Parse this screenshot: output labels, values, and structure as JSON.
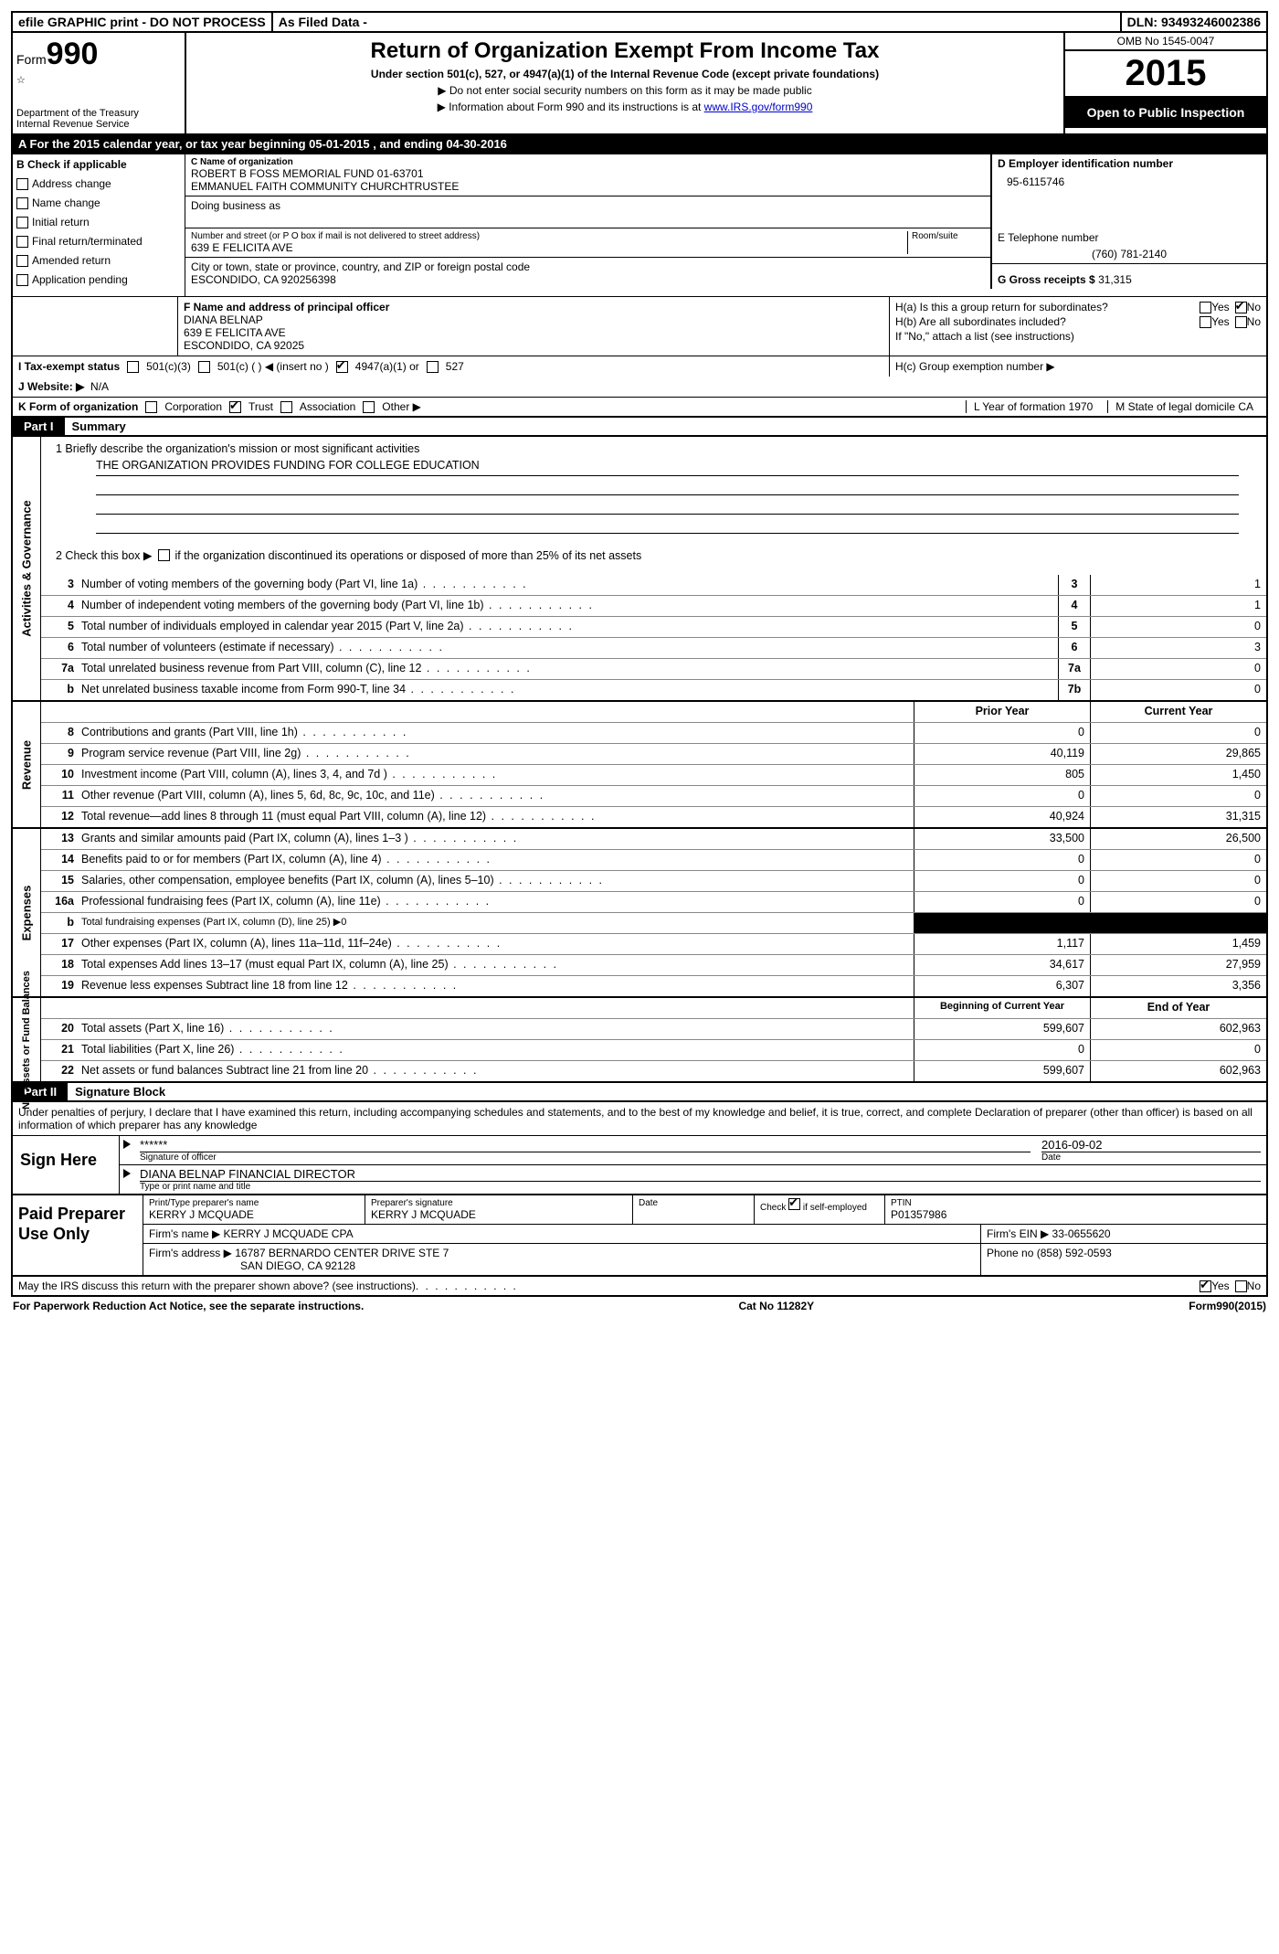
{
  "topbar": {
    "efile": "efile GRAPHIC print - DO NOT PROCESS",
    "asfiled": "As Filed Data -",
    "dln_label": "DLN:",
    "dln": "93493246002386"
  },
  "header": {
    "form_label": "Form",
    "form_no": "990",
    "dept": "Department of the Treasury",
    "irs": "Internal Revenue Service",
    "title": "Return of Organization Exempt From Income Tax",
    "sub": "Under section 501(c), 527, or 4947(a)(1) of the Internal Revenue Code (except private foundations)",
    "note1": "▶ Do not enter social security numbers on this form as it may be made public",
    "note2_pre": "▶ Information about Form 990 and its instructions is at ",
    "note2_link": "www.IRS.gov/form990",
    "omb": "OMB No 1545-0047",
    "year": "2015",
    "open": "Open to Public Inspection"
  },
  "rowA": "A   For the 2015 calendar year, or tax year beginning 05-01-2015    , and ending 04-30-2016",
  "B": {
    "hdr": "B  Check if applicable",
    "items": [
      "Address change",
      "Name change",
      "Initial return",
      "Final return/terminated",
      "Amended return",
      "Application pending"
    ]
  },
  "C": {
    "label": "C Name of organization",
    "name1": "ROBERT B FOSS MEMORIAL FUND 01-63701",
    "name2": "EMMANUEL FAITH COMMUNITY CHURCHTRUSTEE",
    "dba": "Doing business as",
    "addr_label": "Number and street (or P O  box if mail is not delivered to street address)",
    "room": "Room/suite",
    "addr": "639 E FELICITA AVE",
    "city_label": "City or town, state or province, country, and ZIP or foreign postal code",
    "city": "ESCONDIDO, CA  920256398"
  },
  "D": {
    "label": "D Employer identification number",
    "ein": "95-6115746"
  },
  "E": {
    "label": "E Telephone number",
    "phone": "(760) 781-2140"
  },
  "G": {
    "label": "G Gross receipts $",
    "amount": "31,315"
  },
  "F": {
    "label": "F   Name and address of principal officer",
    "name": "DIANA BELNAP",
    "addr": "639 E FELICITA AVE",
    "city": "ESCONDIDO, CA  92025"
  },
  "H": {
    "a": "H(a)  Is this a group return for subordinates?",
    "b": "H(b)  Are all subordinates included?",
    "ifno": "If \"No,\" attach a list  (see instructions)",
    "c": "H(c)   Group exemption number ▶",
    "yes": "Yes",
    "no": "No"
  },
  "I": {
    "label": "I   Tax-exempt status",
    "opts": [
      "501(c)(3)",
      "501(c) (  ) ◀ (insert no )",
      "4947(a)(1) or",
      "527"
    ]
  },
  "J": {
    "label": "J  Website: ▶",
    "val": "N/A"
  },
  "K": {
    "label": "K Form of organization",
    "opts": [
      "Corporation",
      "Trust",
      "Association",
      "Other ▶"
    ],
    "L": "L Year of formation  1970",
    "M": "M State of legal domicile  CA"
  },
  "part1": {
    "tag": "Part I",
    "title": "Summary"
  },
  "summary": {
    "l1": "1 Briefly describe the organization's mission or most significant activities",
    "mission": "THE ORGANIZATION PROVIDES FUNDING FOR COLLEGE EDUCATION",
    "l2": "2  Check this box ▶        if the organization discontinued its operations or disposed of more than 25% of its net assets",
    "lines_small": [
      {
        "n": "3",
        "d": "Number of voting members of the governing body (Part VI, line 1a)",
        "lbl": "3",
        "v": "1"
      },
      {
        "n": "4",
        "d": "Number of independent voting members of the governing body (Part VI, line 1b)",
        "lbl": "4",
        "v": "1"
      },
      {
        "n": "5",
        "d": "Total number of individuals employed in calendar year 2015 (Part V, line 2a)",
        "lbl": "5",
        "v": "0"
      },
      {
        "n": "6",
        "d": "Total number of volunteers (estimate if necessary)",
        "lbl": "6",
        "v": "3"
      },
      {
        "n": "7a",
        "d": "Total unrelated business revenue from Part VIII, column (C), line 12",
        "lbl": "7a",
        "v": "0"
      },
      {
        "n": "b",
        "d": "Net unrelated business taxable income from Form 990-T, line 34",
        "lbl": "7b",
        "v": "0"
      }
    ]
  },
  "revenue_hdr": {
    "prior": "Prior Year",
    "curr": "Current Year"
  },
  "revenue": [
    {
      "n": "8",
      "d": "Contributions and grants (Part VIII, line 1h)",
      "p": "0",
      "c": "0"
    },
    {
      "n": "9",
      "d": "Program service revenue (Part VIII, line 2g)",
      "p": "40,119",
      "c": "29,865"
    },
    {
      "n": "10",
      "d": "Investment income (Part VIII, column (A), lines 3, 4, and 7d )",
      "p": "805",
      "c": "1,450"
    },
    {
      "n": "11",
      "d": "Other revenue (Part VIII, column (A), lines 5, 6d, 8c, 9c, 10c, and 11e)",
      "p": "0",
      "c": "0"
    },
    {
      "n": "12",
      "d": "Total revenue—add lines 8 through 11 (must equal Part VIII, column (A), line 12)",
      "p": "40,924",
      "c": "31,315"
    }
  ],
  "expenses": [
    {
      "n": "13",
      "d": "Grants and similar amounts paid (Part IX, column (A), lines 1–3 )",
      "p": "33,500",
      "c": "26,500"
    },
    {
      "n": "14",
      "d": "Benefits paid to or for members (Part IX, column (A), line 4)",
      "p": "0",
      "c": "0"
    },
    {
      "n": "15",
      "d": "Salaries, other compensation, employee benefits (Part IX, column (A), lines 5–10)",
      "p": "0",
      "c": "0"
    },
    {
      "n": "16a",
      "d": "Professional fundraising fees (Part IX, column (A), line 11e)",
      "p": "0",
      "c": "0"
    },
    {
      "n": "b",
      "d": "Total fundraising expenses (Part IX, column (D), line 25) ▶0",
      "p": "SHADE",
      "c": "SHADE",
      "small": true
    },
    {
      "n": "17",
      "d": "Other expenses (Part IX, column (A), lines 11a–11d, 11f–24e)",
      "p": "1,117",
      "c": "1,459"
    },
    {
      "n": "18",
      "d": "Total expenses  Add lines 13–17 (must equal Part IX, column (A), line 25)",
      "p": "34,617",
      "c": "27,959"
    },
    {
      "n": "19",
      "d": "Revenue less expenses  Subtract line 18 from line 12",
      "p": "6,307",
      "c": "3,356"
    }
  ],
  "netassets_hdr": {
    "prior": "Beginning of Current Year",
    "curr": "End of Year"
  },
  "netassets": [
    {
      "n": "20",
      "d": "Total assets (Part X, line 16)",
      "p": "599,607",
      "c": "602,963"
    },
    {
      "n": "21",
      "d": "Total liabilities (Part X, line 26)",
      "p": "0",
      "c": "0"
    },
    {
      "n": "22",
      "d": "Net assets or fund balances  Subtract line 21 from line 20",
      "p": "599,607",
      "c": "602,963"
    }
  ],
  "part2": {
    "tag": "Part II",
    "title": "Signature Block"
  },
  "penalty": "Under penalties of perjury, I declare that I have examined this return, including accompanying schedules and statements, and to the best of my knowledge and belief, it is true, correct, and complete  Declaration of preparer (other than officer) is based on all information of which preparer has any knowledge",
  "sign": {
    "here": "Sign Here",
    "stars": "******",
    "sig_of": "Signature of officer",
    "date_lbl": "Date",
    "date": "2016-09-02",
    "name": "DIANA BELNAP FINANCIAL DIRECTOR",
    "type": "Type or print name and title"
  },
  "paid": {
    "left": "Paid Preparer Use Only",
    "h1": "Print/Type preparer's name",
    "h2": "Preparer's signature",
    "h3": "Date",
    "h4_pre": "Check",
    "h4_post": "if self-employed",
    "h5": "PTIN",
    "name": "KERRY J MCQUADE",
    "sig": "KERRY J MCQUADE",
    "ptin": "P01357986",
    "firm_label": "Firm's name    ▶",
    "firm": "KERRY J MCQUADE CPA",
    "ein_label": "Firm's EIN ▶",
    "ein": "33-0655620",
    "addr_label": "Firm's address ▶",
    "addr1": "16787 BERNARDO CENTER DRIVE STE 7",
    "addr2": "SAN DIEGO, CA  92128",
    "phone_label": "Phone no",
    "phone": "(858) 592-0593"
  },
  "discuss": "May the IRS discuss this return with the preparer shown above? (see instructions)",
  "footer": {
    "left": "For Paperwork Reduction Act Notice, see the separate instructions.",
    "mid": "Cat No  11282Y",
    "right": "Form 990 (2015)"
  },
  "side_labels": {
    "gov": "Activities & Governance",
    "rev": "Revenue",
    "exp": "Expenses",
    "net": "Net Assets or Fund Balances"
  }
}
